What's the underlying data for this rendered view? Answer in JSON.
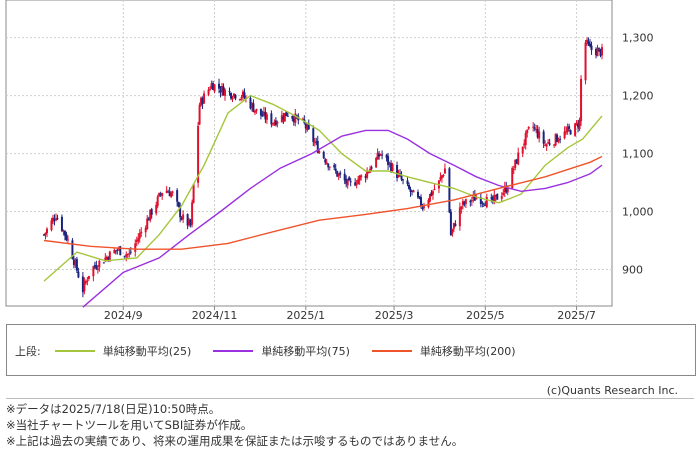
{
  "chart_data": {
    "type": "candlestick",
    "x_ticks": [
      "2024/9",
      "2024/11",
      "2025/1",
      "2025/3",
      "2025/5",
      "2025/7"
    ],
    "y_ticks": [
      900,
      1000,
      1100,
      1200,
      1300
    ],
    "y_tick_labels": [
      "900",
      "1,000",
      "1,100",
      "1,200",
      "1,300"
    ],
    "ylim": [
      837,
      1365
    ],
    "grid": true,
    "up_color": "#e0102d",
    "down_color": "#1a237e",
    "price_anchors": [
      [
        "2024/7/10",
        960
      ],
      [
        "2024/7/18",
        995
      ],
      [
        "2024/7/26",
        950
      ],
      [
        "2024/8/5",
        865
      ],
      [
        "2024/8/10",
        900
      ],
      [
        "2024/8/20",
        920
      ],
      [
        "2024/8/28",
        935
      ],
      [
        "2024/9/5",
        925
      ],
      [
        "2024/9/12",
        960
      ],
      [
        "2024/9/20",
        1000
      ],
      [
        "2024/9/28",
        1040
      ],
      [
        "2024/10/4",
        1030
      ],
      [
        "2024/10/10",
        990
      ],
      [
        "2024/10/16",
        975
      ],
      [
        "2024/10/22",
        1185
      ],
      [
        "2024/10/30",
        1220
      ],
      [
        "2024/11/10",
        1205
      ],
      [
        "2024/11/20",
        1200
      ],
      [
        "2024/11/30",
        1170
      ],
      [
        "2024/12/10",
        1155
      ],
      [
        "2024/12/20",
        1170
      ],
      [
        "2024/12/31",
        1150
      ],
      [
        "2025/1/10",
        1105
      ],
      [
        "2025/1/20",
        1070
      ],
      [
        "2025/1/30",
        1045
      ],
      [
        "2025/2/10",
        1065
      ],
      [
        "2025/2/20",
        1100
      ],
      [
        "2025/2/28",
        1075
      ],
      [
        "2025/3/10",
        1040
      ],
      [
        "2025/3/20",
        1010
      ],
      [
        "2025/3/31",
        1050
      ],
      [
        "2025/4/5",
        1080
      ],
      [
        "2025/4/8",
        960
      ],
      [
        "2025/4/15",
        1010
      ],
      [
        "2025/4/25",
        1025
      ],
      [
        "2025/5/5",
        1015
      ],
      [
        "2025/5/15",
        1040
      ],
      [
        "2025/5/25",
        1110
      ],
      [
        "2025/6/1",
        1150
      ],
      [
        "2025/6/10",
        1115
      ],
      [
        "2025/6/20",
        1130
      ],
      [
        "2025/6/30",
        1145
      ],
      [
        "2025/7/3",
        1155
      ],
      [
        "2025/7/5",
        1300
      ],
      [
        "2025/7/10",
        1280
      ],
      [
        "2025/7/18",
        1275
      ]
    ],
    "series": [
      {
        "name": "単純移動平均(25)",
        "color": "#a5c63a",
        "points": [
          [
            "2024/7/10",
            880
          ],
          [
            "2024/8/1",
            930
          ],
          [
            "2024/8/20",
            915
          ],
          [
            "2024/9/10",
            920
          ],
          [
            "2024/9/25",
            960
          ],
          [
            "2024/10/10",
            1010
          ],
          [
            "2024/10/25",
            1080
          ],
          [
            "2024/11/10",
            1170
          ],
          [
            "2024/11/25",
            1200
          ],
          [
            "2024/12/10",
            1185
          ],
          [
            "2024/12/25",
            1165
          ],
          [
            "2025/1/10",
            1140
          ],
          [
            "2025/1/25",
            1100
          ],
          [
            "2025/2/10",
            1070
          ],
          [
            "2025/2/25",
            1070
          ],
          [
            "2025/3/10",
            1060
          ],
          [
            "2025/3/25",
            1050
          ],
          [
            "2025/4/10",
            1040
          ],
          [
            "2025/4/25",
            1025
          ],
          [
            "2025/5/10",
            1015
          ],
          [
            "2025/5/25",
            1030
          ],
          [
            "2025/6/10",
            1080
          ],
          [
            "2025/6/25",
            1110
          ],
          [
            "2025/7/5",
            1125
          ],
          [
            "2025/7/18",
            1165
          ]
        ]
      },
      {
        "name": "単純移動平均(75)",
        "color": "#9b30e0",
        "points": [
          [
            "2024/8/5",
            835
          ],
          [
            "2024/9/1",
            895
          ],
          [
            "2024/9/25",
            920
          ],
          [
            "2024/10/15",
            960
          ],
          [
            "2024/11/5",
            1000
          ],
          [
            "2024/11/25",
            1040
          ],
          [
            "2024/12/15",
            1075
          ],
          [
            "2025/1/5",
            1100
          ],
          [
            "2025/1/25",
            1130
          ],
          [
            "2025/2/10",
            1140
          ],
          [
            "2025/2/25",
            1140
          ],
          [
            "2025/3/10",
            1125
          ],
          [
            "2025/3/25",
            1100
          ],
          [
            "2025/4/10",
            1080
          ],
          [
            "2025/4/25",
            1060
          ],
          [
            "2025/5/10",
            1045
          ],
          [
            "2025/5/25",
            1035
          ],
          [
            "2025/6/10",
            1040
          ],
          [
            "2025/6/25",
            1050
          ],
          [
            "2025/7/10",
            1065
          ],
          [
            "2025/7/18",
            1080
          ]
        ]
      },
      {
        "name": "単純移動平均(200)",
        "color": "#f0542c",
        "points": [
          [
            "2024/7/10",
            950
          ],
          [
            "2024/8/10",
            940
          ],
          [
            "2024/9/10",
            935
          ],
          [
            "2024/10/10",
            935
          ],
          [
            "2024/11/10",
            945
          ],
          [
            "2024/12/10",
            965
          ],
          [
            "2025/1/10",
            985
          ],
          [
            "2025/2/10",
            995
          ],
          [
            "2025/3/10",
            1005
          ],
          [
            "2025/4/10",
            1020
          ],
          [
            "2025/5/10",
            1040
          ],
          [
            "2025/6/10",
            1060
          ],
          [
            "2025/7/10",
            1085
          ],
          [
            "2025/7/18",
            1095
          ]
        ]
      }
    ]
  },
  "legend": {
    "label": "上段:",
    "items": [
      {
        "label": "単純移動平均(25)",
        "color": "#a5c63a"
      },
      {
        "label": "単純移動平均(75)",
        "color": "#9b30e0"
      },
      {
        "label": "単純移動平均(200)",
        "color": "#f0542c"
      }
    ]
  },
  "copyright": "(c)Quants Research Inc.",
  "notes": [
    "※データは2025/7/18(日足)10:50時点。",
    "※当社チャートツールを用いてSBI証券が作成。",
    "※上記は過去の実績であり、将来の運用成果を保証または示唆するものではありません。"
  ]
}
